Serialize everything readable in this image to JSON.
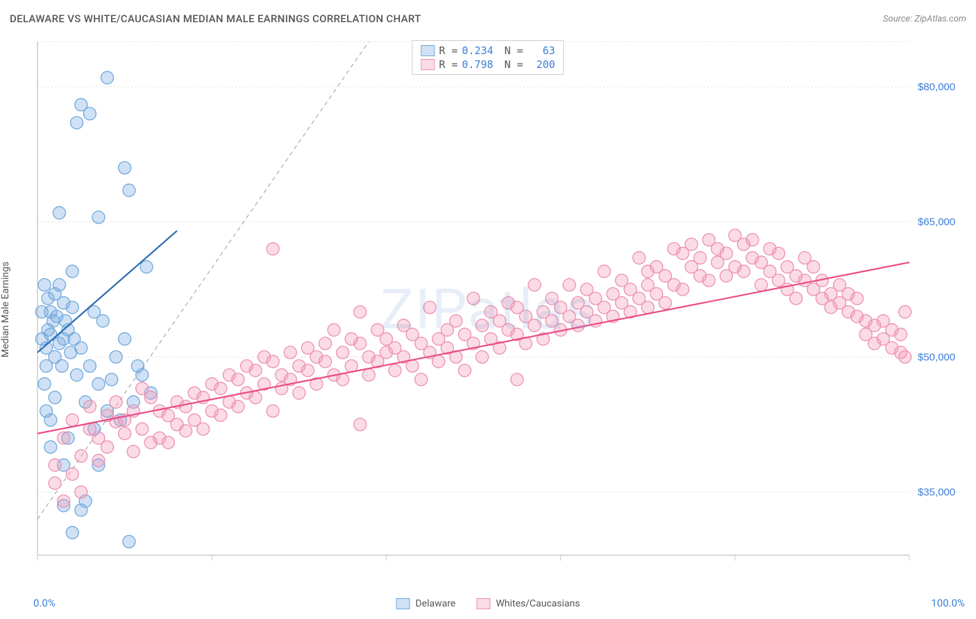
{
  "header": {
    "title": "DELAWARE VS WHITE/CAUCASIAN MEDIAN MALE EARNINGS CORRELATION CHART",
    "source": "Source: ZipAtlas.com"
  },
  "watermark": "ZIPatlas",
  "chart": {
    "type": "scatter",
    "y_axis_label": "Median Male Earnings",
    "plot_bg": "#ffffff",
    "grid_color": "#dddddd",
    "axis_color": "#cccccc",
    "xlim": [
      0,
      100
    ],
    "ylim": [
      28000,
      85000
    ],
    "y_ticks": [
      35000,
      50000,
      65000,
      80000
    ],
    "y_tick_labels": [
      "$35,000",
      "$50,000",
      "$65,000",
      "$80,000"
    ],
    "y_tick_color": "#3b7dd8",
    "x_min_label": "0.0%",
    "x_max_label": "100.0%",
    "x_label_color": "#3b7dd8",
    "x_minor_ticks": [
      20,
      40,
      60,
      80
    ],
    "reference_line": {
      "dash": "6,5",
      "color": "#aaaaaa",
      "x1": 0,
      "y1": 32000,
      "x2": 38,
      "y2": 85000
    },
    "series": [
      {
        "name": "Delaware",
        "marker_fill": "rgba(120,170,225,0.35)",
        "marker_stroke": "#6fa8dc",
        "marker_radius": 9,
        "trend_color": "#2b6cb0",
        "trend_width": 2.2,
        "trend": {
          "x1": 0,
          "y1": 50500,
          "x2": 16,
          "y2": 64000
        },
        "R": "0.234",
        "N": "63",
        "points": [
          [
            0.5,
            52000
          ],
          [
            0.5,
            55000
          ],
          [
            0.8,
            58000
          ],
          [
            1.0,
            51000
          ],
          [
            1.0,
            49000
          ],
          [
            1.2,
            53000
          ],
          [
            1.2,
            56500
          ],
          [
            1.5,
            55000
          ],
          [
            1.5,
            52500
          ],
          [
            1.5,
            43000
          ],
          [
            1.8,
            54000
          ],
          [
            2.0,
            50000
          ],
          [
            2.0,
            57000
          ],
          [
            2.2,
            54500
          ],
          [
            2.5,
            51500
          ],
          [
            2.5,
            66000
          ],
          [
            2.8,
            49000
          ],
          [
            3.0,
            52000
          ],
          [
            3.0,
            56000
          ],
          [
            3.0,
            38000
          ],
          [
            3.2,
            54000
          ],
          [
            3.5,
            53000
          ],
          [
            3.5,
            41000
          ],
          [
            3.8,
            50500
          ],
          [
            4.0,
            55500
          ],
          [
            4.2,
            52000
          ],
          [
            4.5,
            48000
          ],
          [
            4.5,
            76000
          ],
          [
            5.0,
            51000
          ],
          [
            5.0,
            78000
          ],
          [
            5.0,
            33000
          ],
          [
            5.5,
            45000
          ],
          [
            6.0,
            49000
          ],
          [
            6.0,
            77000
          ],
          [
            6.5,
            42000
          ],
          [
            7.0,
            47000
          ],
          [
            7.0,
            65500
          ],
          [
            7.5,
            54000
          ],
          [
            8.0,
            44000
          ],
          [
            8.0,
            81000
          ],
          [
            8.5,
            47500
          ],
          [
            9.0,
            50000
          ],
          [
            9.5,
            43000
          ],
          [
            10.0,
            52000
          ],
          [
            10.0,
            71000
          ],
          [
            10.5,
            68500
          ],
          [
            11.0,
            45000
          ],
          [
            11.5,
            49000
          ],
          [
            12.0,
            48000
          ],
          [
            12.5,
            60000
          ],
          [
            13.0,
            46000
          ],
          [
            10.5,
            29500
          ],
          [
            4.0,
            30500
          ],
          [
            5.5,
            34000
          ],
          [
            3.0,
            33500
          ],
          [
            1.5,
            40000
          ],
          [
            7.0,
            38000
          ],
          [
            2.0,
            45500
          ],
          [
            0.8,
            47000
          ],
          [
            1.0,
            44000
          ],
          [
            2.5,
            58000
          ],
          [
            4.0,
            59500
          ],
          [
            6.5,
            55000
          ]
        ]
      },
      {
        "name": "Whites/Caucasians",
        "marker_fill": "rgba(244,151,184,0.35)",
        "marker_stroke": "#ec8fb0",
        "marker_radius": 9,
        "trend_color": "#e94b86",
        "trend_width": 2.2,
        "trend": {
          "x1": 0,
          "y1": 41500,
          "x2": 100,
          "y2": 60500
        },
        "R": "0.798",
        "N": "200",
        "points": [
          [
            2,
            36000
          ],
          [
            2,
            38000
          ],
          [
            3,
            34000
          ],
          [
            3,
            41000
          ],
          [
            4,
            37000
          ],
          [
            4,
            43000
          ],
          [
            5,
            39000
          ],
          [
            5,
            35000
          ],
          [
            6,
            42000
          ],
          [
            6,
            44500
          ],
          [
            7,
            41000
          ],
          [
            7,
            38500
          ],
          [
            8,
            43500
          ],
          [
            8,
            40000
          ],
          [
            9,
            42800
          ],
          [
            9,
            45000
          ],
          [
            10,
            41500
          ],
          [
            10,
            43000
          ],
          [
            11,
            44000
          ],
          [
            11,
            39500
          ],
          [
            12,
            46500
          ],
          [
            12,
            42000
          ],
          [
            13,
            40500
          ],
          [
            13,
            45500
          ],
          [
            14,
            44000
          ],
          [
            14,
            41000
          ],
          [
            15,
            43500
          ],
          [
            15,
            40500
          ],
          [
            16,
            45000
          ],
          [
            16,
            42500
          ],
          [
            17,
            44500
          ],
          [
            17,
            41800
          ],
          [
            18,
            46000
          ],
          [
            18,
            43000
          ],
          [
            19,
            45500
          ],
          [
            19,
            42000
          ],
          [
            20,
            47000
          ],
          [
            20,
            44000
          ],
          [
            21,
            43533
          ],
          [
            21,
            46500
          ],
          [
            22,
            45000
          ],
          [
            22,
            48000
          ],
          [
            23,
            47500
          ],
          [
            23,
            44500
          ],
          [
            24,
            46000
          ],
          [
            24,
            49000
          ],
          [
            25,
            48500
          ],
          [
            25,
            45500
          ],
          [
            26,
            47000
          ],
          [
            26,
            50000
          ],
          [
            27,
            49500
          ],
          [
            27,
            44000
          ],
          [
            27,
            62000
          ],
          [
            28,
            48000
          ],
          [
            28,
            46500
          ],
          [
            29,
            50500
          ],
          [
            29,
            47500
          ],
          [
            30,
            49000
          ],
          [
            30,
            46000
          ],
          [
            31,
            51000
          ],
          [
            31,
            48500
          ],
          [
            32,
            50000
          ],
          [
            32,
            47000
          ],
          [
            33,
            51500
          ],
          [
            33,
            49500
          ],
          [
            34,
            48000
          ],
          [
            34,
            53000
          ],
          [
            35,
            50500
          ],
          [
            35,
            47500
          ],
          [
            36,
            52000
          ],
          [
            36,
            49000
          ],
          [
            37,
            51500
          ],
          [
            37,
            42500
          ],
          [
            37,
            55000
          ],
          [
            38,
            50000
          ],
          [
            38,
            48000
          ],
          [
            39,
            53000
          ],
          [
            39,
            49500
          ],
          [
            40,
            52000
          ],
          [
            40,
            50500
          ],
          [
            41,
            51000
          ],
          [
            41,
            48500
          ],
          [
            42,
            53500
          ],
          [
            42,
            50000
          ],
          [
            43,
            52500
          ],
          [
            43,
            49000
          ],
          [
            44,
            51500
          ],
          [
            44,
            47500
          ],
          [
            45,
            55500
          ],
          [
            45,
            50500
          ],
          [
            46,
            52000
          ],
          [
            46,
            49500
          ],
          [
            47,
            53000
          ],
          [
            47,
            51000
          ],
          [
            48,
            54000
          ],
          [
            48,
            50000
          ],
          [
            49,
            52500
          ],
          [
            49,
            48500
          ],
          [
            50,
            56500
          ],
          [
            50,
            51500
          ],
          [
            51,
            53500
          ],
          [
            51,
            50000
          ],
          [
            52,
            55000
          ],
          [
            52,
            52000
          ],
          [
            53,
            54000
          ],
          [
            53,
            51000
          ],
          [
            54,
            56000
          ],
          [
            54,
            53000
          ],
          [
            55,
            55500
          ],
          [
            55,
            52500
          ],
          [
            55,
            47500
          ],
          [
            56,
            54500
          ],
          [
            56,
            51500
          ],
          [
            57,
            58000
          ],
          [
            57,
            53500
          ],
          [
            58,
            55000
          ],
          [
            58,
            52000
          ],
          [
            59,
            56500
          ],
          [
            59,
            54000
          ],
          [
            60,
            55500
          ],
          [
            60,
            53000
          ],
          [
            61,
            58000
          ],
          [
            61,
            54500
          ],
          [
            62,
            56000
          ],
          [
            62,
            53500
          ],
          [
            63,
            57500
          ],
          [
            63,
            55000
          ],
          [
            64,
            56500
          ],
          [
            64,
            54000
          ],
          [
            65,
            59500
          ],
          [
            65,
            55500
          ],
          [
            66,
            57000
          ],
          [
            66,
            54500
          ],
          [
            67,
            58500
          ],
          [
            67,
            56000
          ],
          [
            68,
            57500
          ],
          [
            68,
            55000
          ],
          [
            69,
            61000
          ],
          [
            69,
            56500
          ],
          [
            70,
            58000
          ],
          [
            70,
            59500
          ],
          [
            70,
            55500
          ],
          [
            71,
            60000
          ],
          [
            71,
            57000
          ],
          [
            72,
            59000
          ],
          [
            72,
            56000
          ],
          [
            73,
            62000
          ],
          [
            73,
            58000
          ],
          [
            74,
            61500
          ],
          [
            74,
            57500
          ],
          [
            75,
            60000
          ],
          [
            75,
            62500
          ],
          [
            76,
            59000
          ],
          [
            76,
            61000
          ],
          [
            77,
            63000
          ],
          [
            77,
            58500
          ],
          [
            78,
            60500
          ],
          [
            78,
            62000
          ],
          [
            79,
            61500
          ],
          [
            79,
            59000
          ],
          [
            80,
            63500
          ],
          [
            80,
            60000
          ],
          [
            81,
            62500
          ],
          [
            81,
            59500
          ],
          [
            82,
            61000
          ],
          [
            82,
            63000
          ],
          [
            83,
            60500
          ],
          [
            83,
            58000
          ],
          [
            84,
            62000
          ],
          [
            84,
            59500
          ],
          [
            85,
            61500
          ],
          [
            85,
            58500
          ],
          [
            86,
            60000
          ],
          [
            86,
            57500
          ],
          [
            87,
            59000
          ],
          [
            87,
            56500
          ],
          [
            88,
            58500
          ],
          [
            88,
            61000
          ],
          [
            89,
            57500
          ],
          [
            89,
            60000
          ],
          [
            90,
            56500
          ],
          [
            90,
            58500
          ],
          [
            91,
            57000
          ],
          [
            91,
            55500
          ],
          [
            92,
            56000
          ],
          [
            92,
            58000
          ],
          [
            93,
            55000
          ],
          [
            93,
            57000
          ],
          [
            94,
            54500
          ],
          [
            94,
            56500
          ],
          [
            95,
            54000
          ],
          [
            95,
            52500
          ],
          [
            96,
            53500
          ],
          [
            96,
            51500
          ],
          [
            97,
            52000
          ],
          [
            97,
            54000
          ],
          [
            98,
            51000
          ],
          [
            98,
            53000
          ],
          [
            99,
            50500
          ],
          [
            99,
            52500
          ],
          [
            99.5,
            50000
          ],
          [
            99.5,
            55000
          ]
        ]
      }
    ]
  },
  "legend_top": {
    "R_label": "R =",
    "N_label": "N ="
  },
  "legend_bottom": {
    "items": [
      "Delaware",
      "Whites/Caucasians"
    ]
  }
}
